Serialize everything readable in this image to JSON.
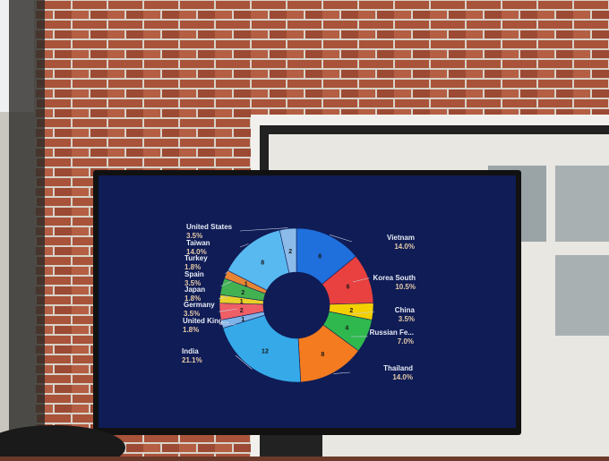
{
  "chart_data": {
    "type": "donut",
    "categories": [
      "Vietnam",
      "Korea South",
      "China",
      "Russian Fe...",
      "Thailand",
      "India",
      "United King...",
      "Germany",
      "Japan",
      "Spain",
      "Turkey",
      "Taiwan",
      "United States"
    ],
    "values": [
      8,
      6,
      2,
      4,
      8,
      12,
      1,
      2,
      1,
      2,
      1,
      8,
      2
    ],
    "percent_labels": [
      "14.0%",
      "10.5%",
      "3.5%",
      "7.0%",
      "14.0%",
      "21.1%",
      "1.8%",
      "3.5%",
      "1.8%",
      "3.5%",
      "1.8%",
      "14.0%",
      "3.5%"
    ],
    "colors": [
      "#1f6fdc",
      "#e8413f",
      "#f4d000",
      "#2fb84e",
      "#f47b1f",
      "#36a9e9",
      "#7fb2e6",
      "#ef5f66",
      "#e9d12a",
      "#42b152",
      "#e88534",
      "#58b9f0",
      "#8cbbe9"
    ]
  }
}
